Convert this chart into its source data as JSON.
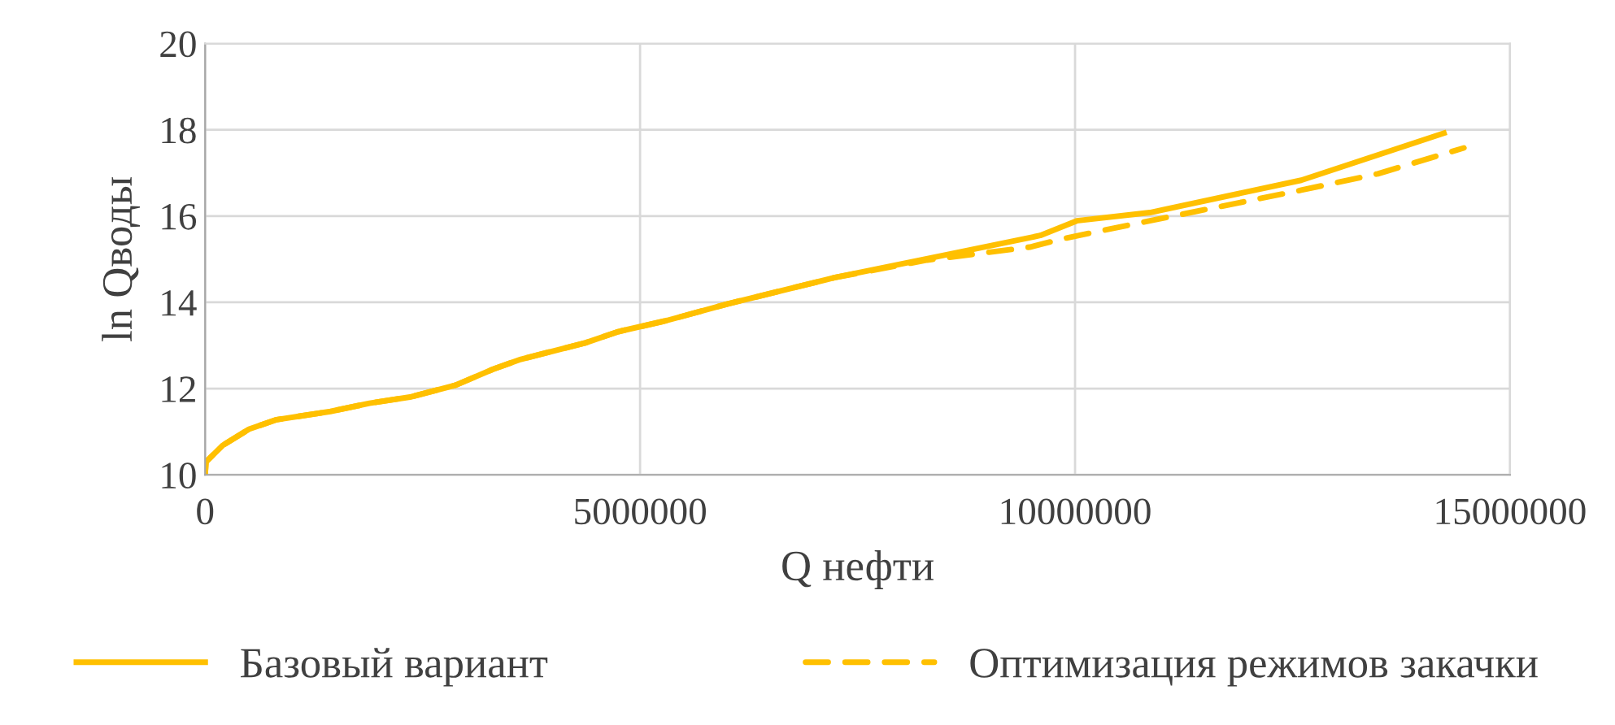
{
  "chart_data": {
    "type": "line",
    "xlabel": "Q нефти",
    "ylabel": "ln Qводы",
    "xlim": [
      0,
      15000000
    ],
    "ylim": [
      10,
      20
    ],
    "xticks": [
      0,
      5000000,
      10000000,
      15000000
    ],
    "yticks": [
      10,
      12,
      14,
      16,
      18,
      20
    ],
    "grid": true,
    "legend": "bottom",
    "marker": "none",
    "series": [
      {
        "name": "Базовый вариант",
        "color": "#ffc000",
        "line_style": "solid",
        "x": [
          0,
          10000,
          200000,
          505000,
          822000,
          1440000,
          1890000,
          2370000,
          2880000,
          3310000,
          3630000,
          4370000,
          4750000,
          5310000,
          6000000,
          7230000,
          8490000,
          9600000,
          10020000,
          10860000,
          12600000,
          14240000
        ],
        "values": [
          10,
          10.3,
          10.68,
          11.06,
          11.28,
          11.47,
          11.66,
          11.81,
          12.08,
          12.45,
          12.68,
          13.06,
          13.32,
          13.58,
          13.96,
          14.57,
          15.09,
          15.55,
          15.89,
          16.08,
          16.83,
          17.92
        ]
      },
      {
        "name": "Оптимизация режимов закачки",
        "color": "#ffc000",
        "line_style": "dashed",
        "x": [
          0,
          10000,
          200000,
          505000,
          822000,
          1440000,
          1890000,
          2370000,
          2880000,
          3310000,
          3630000,
          4370000,
          4750000,
          5310000,
          6000000,
          7230000,
          8300000,
          9480000,
          9850000,
          10860000,
          12600000,
          13480000,
          14470000
        ],
        "values": [
          10,
          10.3,
          10.68,
          11.06,
          11.28,
          11.47,
          11.66,
          11.81,
          12.08,
          12.45,
          12.68,
          13.06,
          13.32,
          13.58,
          13.96,
          14.57,
          14.98,
          15.28,
          15.47,
          15.89,
          16.6,
          16.98,
          17.58
        ]
      }
    ]
  }
}
